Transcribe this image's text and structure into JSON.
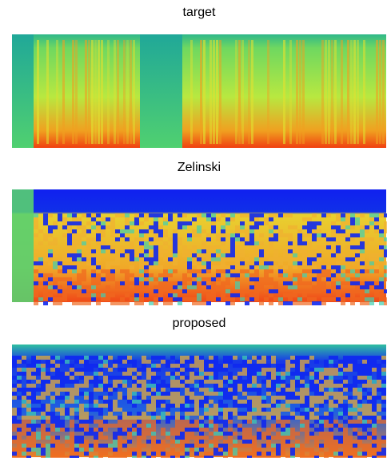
{
  "panels": [
    {
      "title": "target"
    },
    {
      "title": "Zelinski"
    },
    {
      "title": "proposed"
    }
  ]
}
